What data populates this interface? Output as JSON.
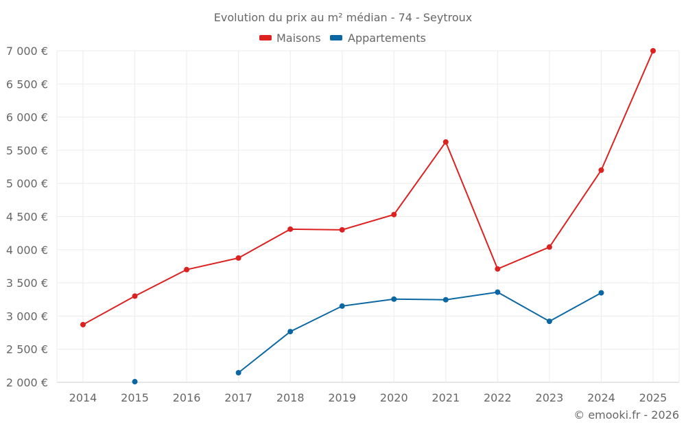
{
  "chart_data": {
    "type": "line",
    "title": "Evolution du prix au m² médian - 74 - Seytroux",
    "xlabel": "",
    "ylabel": "",
    "categories": [
      "2014",
      "2015",
      "2016",
      "2017",
      "2018",
      "2019",
      "2020",
      "2021",
      "2022",
      "2023",
      "2024",
      "2025"
    ],
    "ylim": [
      2000,
      7000
    ],
    "yticks": [
      2000,
      2500,
      3000,
      3500,
      4000,
      4500,
      5000,
      5500,
      6000,
      6500,
      7000
    ],
    "ytick_labels": [
      "2 000 €",
      "2 500 €",
      "3 000 €",
      "3 500 €",
      "4 000 €",
      "4 500 €",
      "5 000 €",
      "5 500 €",
      "6 000 €",
      "6 500 €",
      "7 000 €"
    ],
    "grid": true,
    "legend_position": "top-center",
    "series": [
      {
        "name": "Maisons",
        "color": "#dc2121",
        "values": [
          2870,
          3300,
          3700,
          3875,
          4310,
          4300,
          4530,
          5625,
          3710,
          4040,
          5200,
          7000
        ]
      },
      {
        "name": "Appartements",
        "color": "#0a67a3",
        "values": [
          null,
          2010,
          null,
          2145,
          2765,
          3150,
          3255,
          3245,
          3360,
          2920,
          3350,
          null
        ]
      }
    ],
    "credit": "© emooki.fr - 2026"
  }
}
